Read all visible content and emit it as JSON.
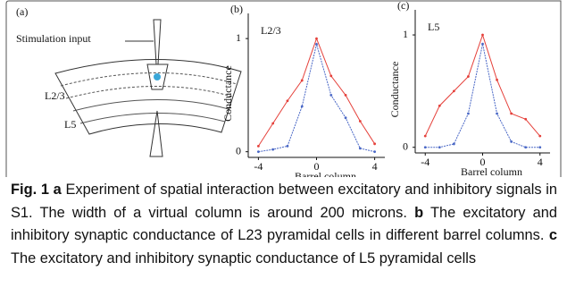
{
  "panel_a": {
    "label": "(a)",
    "stimulation": "Stimulation input",
    "upper_layer": "L2/3",
    "lower_layer": "L5"
  },
  "chart_data": [
    {
      "type": "line",
      "panel": "(b)",
      "title": "L2/3",
      "xlabel": "Barrel column",
      "ylabel": "Conductance",
      "x": [
        -4,
        -3,
        -2,
        -1,
        0,
        1,
        2,
        3,
        4
      ],
      "series": [
        {
          "color": "#e5403a",
          "values": [
            0.05,
            0.25,
            0.45,
            0.63,
            1.0,
            0.67,
            0.5,
            0.27,
            0.07
          ]
        },
        {
          "color": "#4a68c6",
          "values": [
            0.0,
            0.02,
            0.05,
            0.4,
            0.95,
            0.5,
            0.3,
            0.03,
            0.0
          ]
        }
      ],
      "xlim": [
        -4.7,
        4.7
      ],
      "ylim": [
        -0.05,
        1.08
      ],
      "xticks": [
        -4,
        0,
        4
      ],
      "yticks": [
        0,
        1
      ]
    },
    {
      "type": "line",
      "panel": "(c)",
      "title": "L5",
      "xlabel": "Barrel column",
      "ylabel": "Conductance",
      "x": [
        -4,
        -3,
        -2,
        -1,
        0,
        1,
        2,
        3,
        4
      ],
      "series": [
        {
          "color": "#e5403a",
          "values": [
            0.1,
            0.37,
            0.5,
            0.63,
            1.0,
            0.6,
            0.3,
            0.25,
            0.1
          ]
        },
        {
          "color": "#4a68c6",
          "values": [
            0.0,
            0.0,
            0.03,
            0.3,
            0.92,
            0.3,
            0.05,
            0.0,
            0.0
          ]
        }
      ],
      "xlim": [
        -4.7,
        4.7
      ],
      "ylim": [
        -0.05,
        1.08
      ],
      "xticks": [
        -4,
        0,
        4
      ],
      "yticks": [
        0,
        1
      ]
    }
  ],
  "caption": {
    "figure": "Fig. 1",
    "parts": [
      {
        "letter": "a",
        "text": "Experiment of spatial interaction between excitatory and inhibitory signals in S1. The width of a virtual column is around 200 microns."
      },
      {
        "letter": "b",
        "text": "The excitatory and inhibitory synaptic conductance of L23 pyramidal cells in different barrel columns."
      },
      {
        "letter": "c",
        "text": "The excitatory and inhibitory synaptic conductance of L5 pyramidal cells"
      }
    ]
  }
}
